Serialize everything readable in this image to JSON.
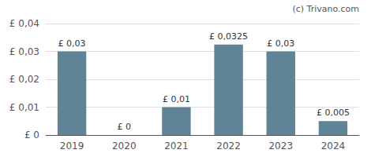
{
  "chart_data": {
    "type": "bar",
    "categories": [
      "2019",
      "2020",
      "2021",
      "2022",
      "2023",
      "2024"
    ],
    "values": [
      0.03,
      0.0,
      0.01,
      0.0325,
      0.03,
      0.005
    ],
    "value_labels": [
      "£ 0,03",
      "£ 0",
      "£ 0,01",
      "£ 0,0325",
      "£ 0,03",
      "£ 0,005"
    ],
    "data_labels": true,
    "color": "#5f8496",
    "ylim": [
      0,
      0.04
    ],
    "yticks": [
      {
        "value": 0,
        "label": "£ 0"
      },
      {
        "value": 0.01,
        "label": "£ 0,01"
      },
      {
        "value": 0.02,
        "label": "£ 0,02"
      },
      {
        "value": 0.03,
        "label": "£ 0,03"
      },
      {
        "value": 0.04,
        "label": "£ 0,04"
      }
    ],
    "grid": true,
    "annotation": "(c) Trivano.com"
  }
}
